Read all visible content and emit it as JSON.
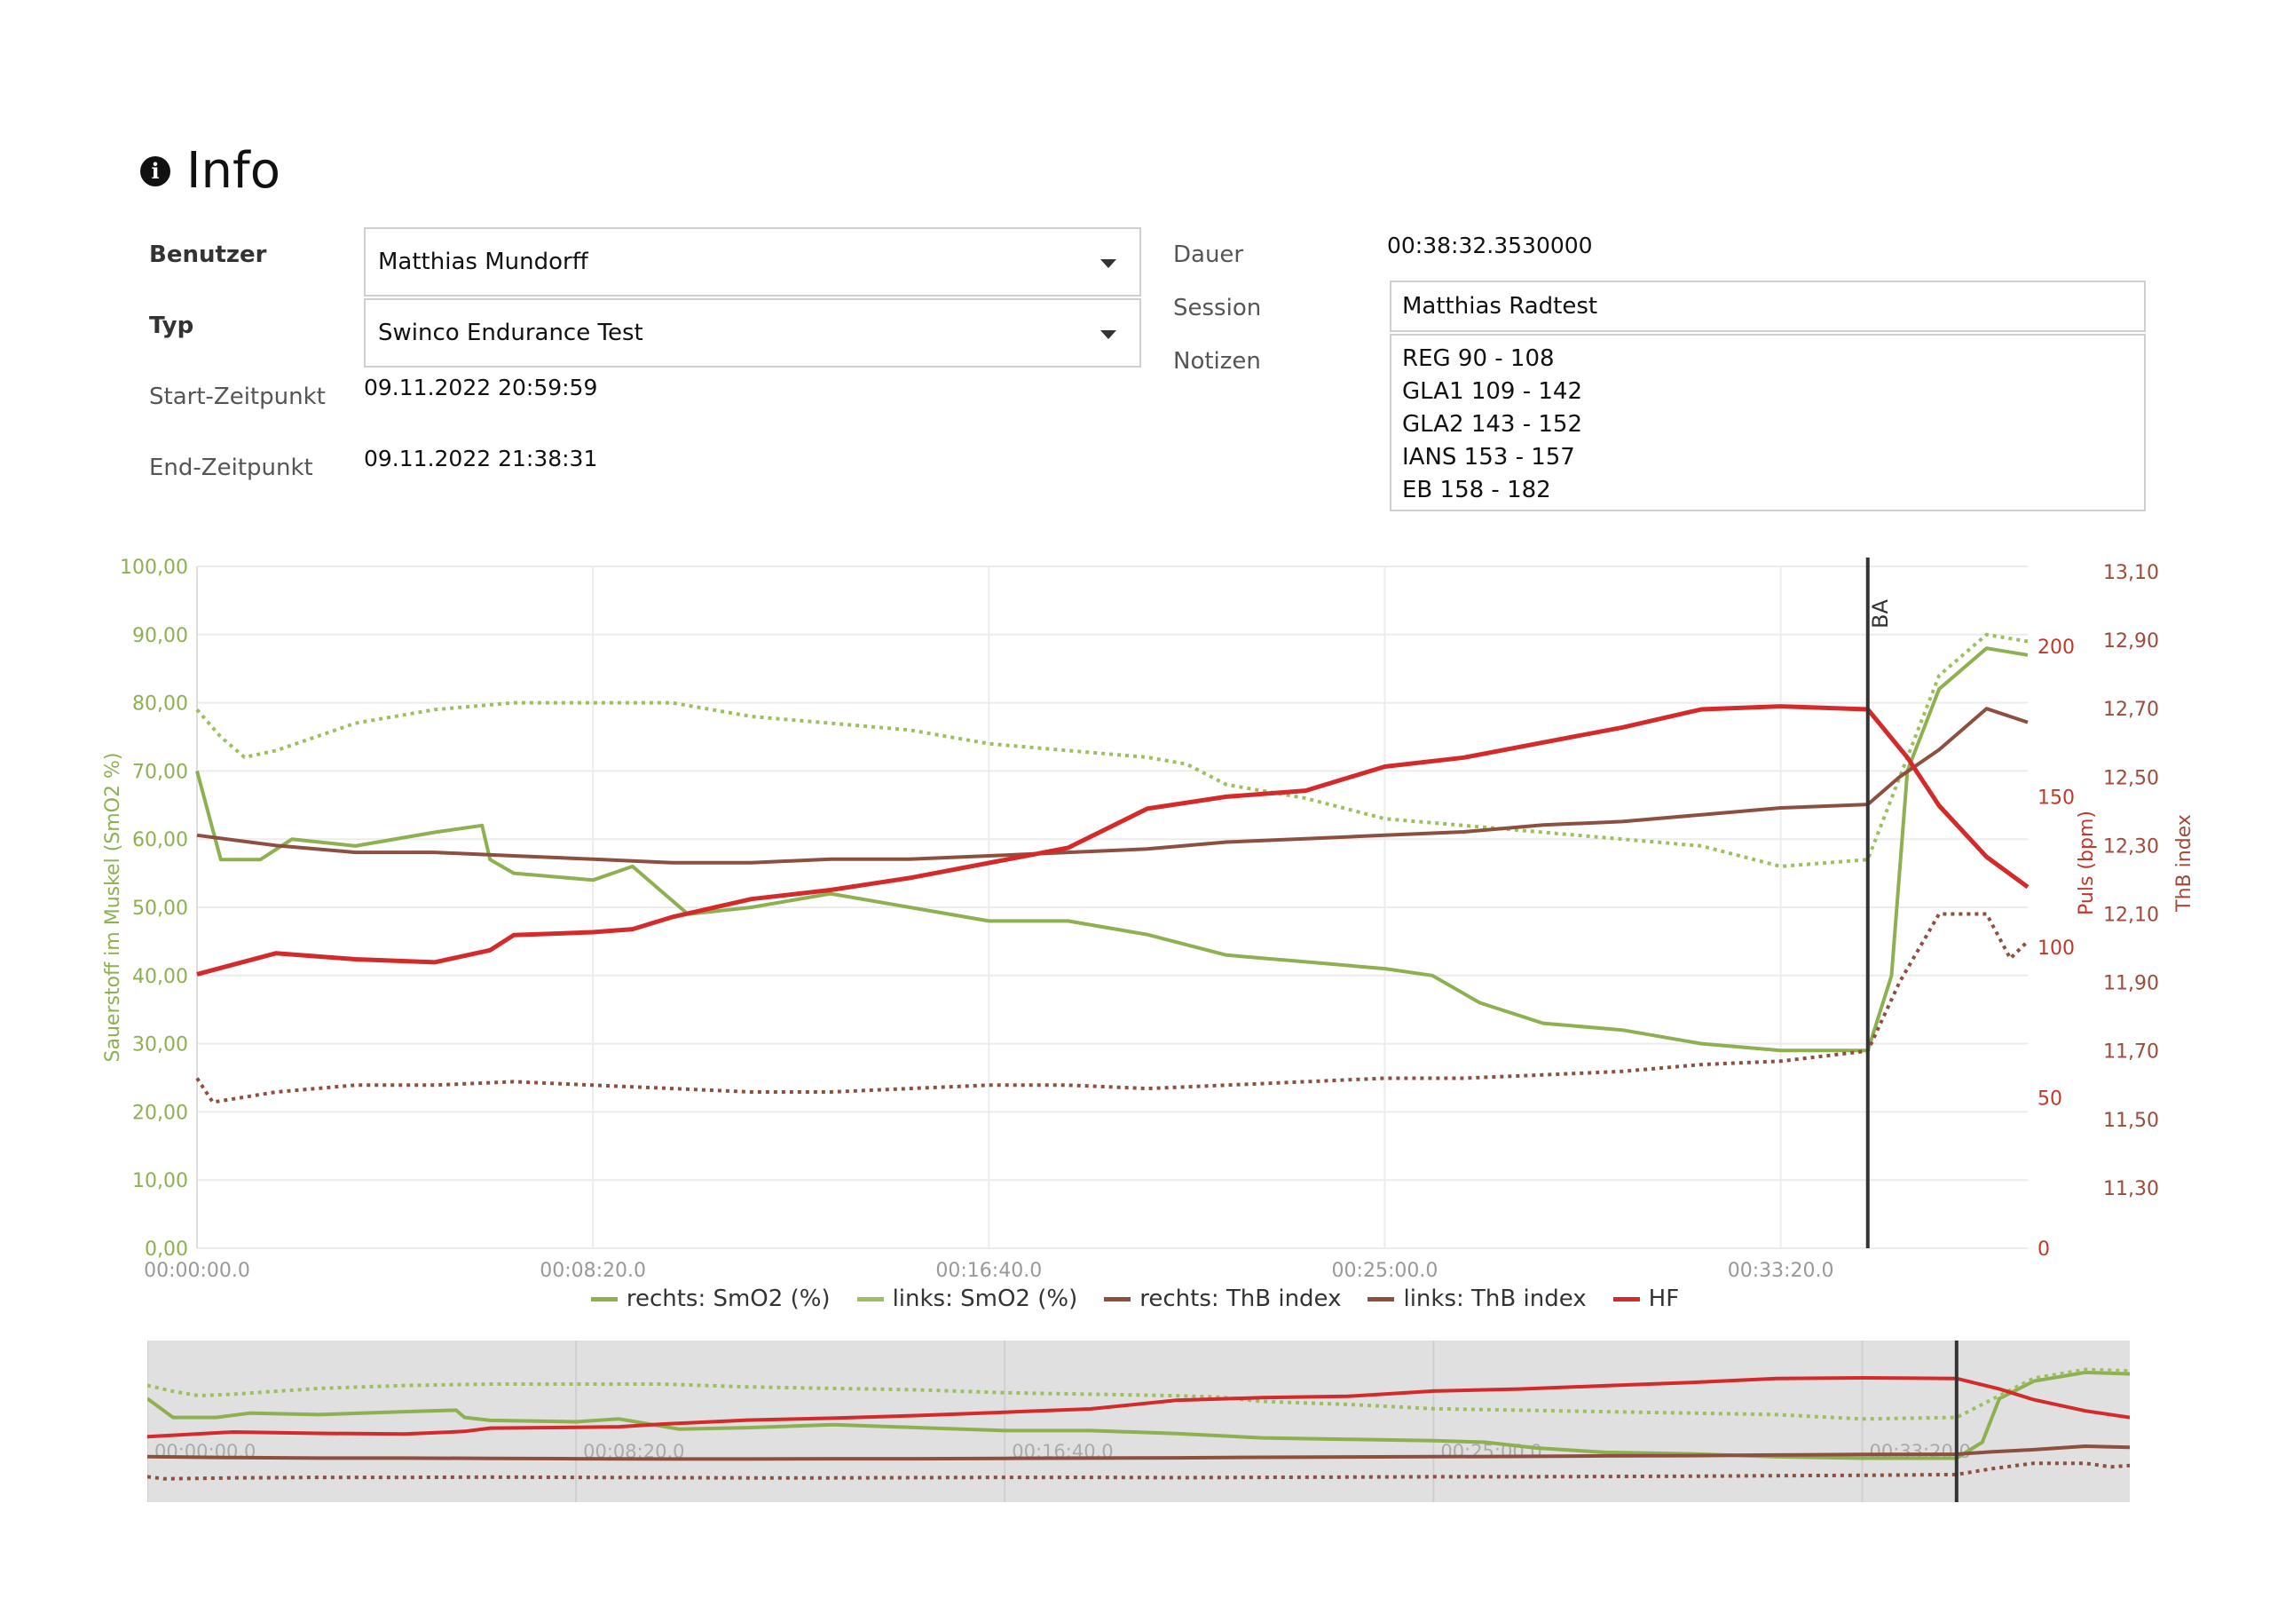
{
  "header": {
    "icon": "info-circle-icon",
    "title": "Info"
  },
  "fields": {
    "user_label": "Benutzer",
    "user_value": "Matthias Mundorff",
    "type_label": "Typ",
    "type_value": "Swinco Endurance Test",
    "start_label": "Start-Zeitpunkt",
    "start_value": "09.11.2022 20:59:59",
    "end_label": "End-Zeitpunkt",
    "end_value": "09.11.2022 21:38:31",
    "duration_label": "Dauer",
    "duration_value": "00:38:32.3530000",
    "session_label": "Session",
    "session_value": "Matthias Radtest",
    "notes_label": "Notizen",
    "notes_lines": [
      "REG 90 - 108",
      "GLA1 109 - 142",
      "GLA2 143 - 152",
      "IANS 153 - 157",
      "EB 158 - 182"
    ]
  },
  "colors": {
    "smo2_right": "#8db050",
    "smo2_left": "#9cc060",
    "thb_right": "#8d5040",
    "thb_left": "#8d5040",
    "hf": "#d42a2a",
    "left_axis": "#8db050",
    "right_axis_hf": "#c0392b",
    "right_axis_thb": "#a04a3a"
  },
  "chart_data": {
    "type": "line",
    "x_ticks": [
      "00:00:00.0",
      "00:08:20.0",
      "00:16:40.0",
      "00:25:00.0",
      "00:33:20.0"
    ],
    "x_range_seconds": [
      0,
      2312
    ],
    "y_left": {
      "label": "Sauerstoff im Muskel (SmO2 %)",
      "range": [
        0,
        100
      ],
      "ticks": [
        "0,00",
        "10,00",
        "20,00",
        "30,00",
        "40,00",
        "50,00",
        "60,00",
        "70,00",
        "80,00",
        "90,00",
        "100,00"
      ]
    },
    "y_right_hf": {
      "label": "Puls (bpm)",
      "range": [
        0,
        220
      ],
      "ticks": [
        "0",
        "50",
        "100",
        "150",
        "200"
      ]
    },
    "y_right_thb": {
      "label": "ThB index",
      "range": [
        11.1,
        13.1
      ],
      "ticks": [
        "11,30",
        "11,50",
        "11,70",
        "11,90",
        "12,10",
        "12,30",
        "12,50",
        "12,70",
        "12,90",
        "13,10"
      ]
    },
    "marker": {
      "label": "BA",
      "x_seconds": 2110
    },
    "series": [
      {
        "name": "rechts: SmO2 (%)",
        "axis": "left",
        "style": "solid",
        "points": [
          [
            0,
            70
          ],
          [
            30,
            57
          ],
          [
            80,
            57
          ],
          [
            120,
            60
          ],
          [
            200,
            59
          ],
          [
            300,
            61
          ],
          [
            360,
            62
          ],
          [
            370,
            57
          ],
          [
            400,
            55
          ],
          [
            500,
            54
          ],
          [
            550,
            56
          ],
          [
            620,
            49
          ],
          [
            700,
            50
          ],
          [
            800,
            52
          ],
          [
            900,
            50
          ],
          [
            1000,
            48
          ],
          [
            1100,
            48
          ],
          [
            1200,
            46
          ],
          [
            1300,
            43
          ],
          [
            1400,
            42
          ],
          [
            1500,
            41
          ],
          [
            1560,
            40
          ],
          [
            1620,
            36
          ],
          [
            1700,
            33
          ],
          [
            1800,
            32
          ],
          [
            1900,
            30
          ],
          [
            2000,
            29
          ],
          [
            2110,
            29
          ],
          [
            2140,
            40
          ],
          [
            2160,
            70
          ],
          [
            2200,
            82
          ],
          [
            2260,
            88
          ],
          [
            2312,
            87
          ]
        ]
      },
      {
        "name": "links: SmO2 (%)",
        "axis": "left",
        "style": "dotted",
        "points": [
          [
            0,
            79
          ],
          [
            30,
            75
          ],
          [
            60,
            72
          ],
          [
            100,
            73
          ],
          [
            200,
            77
          ],
          [
            300,
            79
          ],
          [
            400,
            80
          ],
          [
            500,
            80
          ],
          [
            600,
            80
          ],
          [
            700,
            78
          ],
          [
            800,
            77
          ],
          [
            900,
            76
          ],
          [
            1000,
            74
          ],
          [
            1100,
            73
          ],
          [
            1200,
            72
          ],
          [
            1250,
            71
          ],
          [
            1300,
            68
          ],
          [
            1400,
            66
          ],
          [
            1500,
            63
          ],
          [
            1600,
            62
          ],
          [
            1700,
            61
          ],
          [
            1800,
            60
          ],
          [
            1900,
            59
          ],
          [
            2000,
            56
          ],
          [
            2110,
            57
          ],
          [
            2160,
            72
          ],
          [
            2200,
            84
          ],
          [
            2260,
            90
          ],
          [
            2312,
            89
          ]
        ]
      },
      {
        "name": "rechts: ThB index",
        "axis": "thb",
        "style": "solid",
        "points": [
          [
            0,
            12.33
          ],
          [
            100,
            12.3
          ],
          [
            200,
            12.28
          ],
          [
            300,
            12.28
          ],
          [
            400,
            12.27
          ],
          [
            500,
            12.26
          ],
          [
            600,
            12.25
          ],
          [
            700,
            12.25
          ],
          [
            800,
            12.26
          ],
          [
            900,
            12.26
          ],
          [
            1000,
            12.27
          ],
          [
            1100,
            12.28
          ],
          [
            1200,
            12.29
          ],
          [
            1300,
            12.31
          ],
          [
            1400,
            12.32
          ],
          [
            1500,
            12.33
          ],
          [
            1600,
            12.34
          ],
          [
            1700,
            12.36
          ],
          [
            1800,
            12.37
          ],
          [
            1900,
            12.39
          ],
          [
            2000,
            12.41
          ],
          [
            2110,
            12.42
          ],
          [
            2150,
            12.5
          ],
          [
            2200,
            12.58
          ],
          [
            2260,
            12.7
          ],
          [
            2312,
            12.66
          ]
        ]
      },
      {
        "name": "links: ThB index",
        "axis": "thb",
        "style": "dotted",
        "points": [
          [
            0,
            11.62
          ],
          [
            20,
            11.55
          ],
          [
            100,
            11.58
          ],
          [
            200,
            11.6
          ],
          [
            300,
            11.6
          ],
          [
            400,
            11.61
          ],
          [
            500,
            11.6
          ],
          [
            600,
            11.59
          ],
          [
            700,
            11.58
          ],
          [
            800,
            11.58
          ],
          [
            900,
            11.59
          ],
          [
            1000,
            11.6
          ],
          [
            1100,
            11.6
          ],
          [
            1200,
            11.59
          ],
          [
            1300,
            11.6
          ],
          [
            1400,
            11.61
          ],
          [
            1500,
            11.62
          ],
          [
            1600,
            11.62
          ],
          [
            1700,
            11.63
          ],
          [
            1800,
            11.64
          ],
          [
            1900,
            11.66
          ],
          [
            2000,
            11.67
          ],
          [
            2110,
            11.7
          ],
          [
            2150,
            11.9
          ],
          [
            2200,
            12.1
          ],
          [
            2260,
            12.1
          ],
          [
            2290,
            11.97
          ],
          [
            2312,
            12.02
          ]
        ]
      },
      {
        "name": "HF",
        "axis": "hf",
        "style": "solid",
        "points": [
          [
            0,
            91
          ],
          [
            100,
            98
          ],
          [
            200,
            96
          ],
          [
            300,
            95
          ],
          [
            370,
            99
          ],
          [
            400,
            104
          ],
          [
            500,
            105
          ],
          [
            550,
            106
          ],
          [
            600,
            110
          ],
          [
            700,
            116
          ],
          [
            800,
            119
          ],
          [
            900,
            123
          ],
          [
            1000,
            128
          ],
          [
            1100,
            133
          ],
          [
            1200,
            146
          ],
          [
            1300,
            150
          ],
          [
            1400,
            152
          ],
          [
            1500,
            160
          ],
          [
            1600,
            163
          ],
          [
            1700,
            168
          ],
          [
            1800,
            173
          ],
          [
            1900,
            179
          ],
          [
            2000,
            180
          ],
          [
            2110,
            179
          ],
          [
            2160,
            163
          ],
          [
            2200,
            147
          ],
          [
            2260,
            130
          ],
          [
            2312,
            120
          ]
        ]
      }
    ]
  },
  "navigator": {
    "x_ticks": [
      "00:00:00.0",
      "00:08:20.0",
      "00:16:40.0",
      "00:25:00.0",
      "00:33:20.0"
    ]
  }
}
